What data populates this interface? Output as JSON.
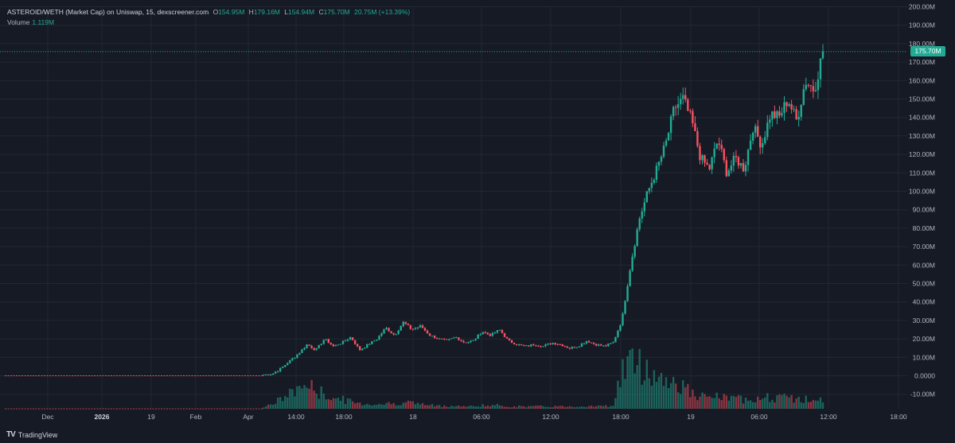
{
  "legend": {
    "symbol": "ASTEROID/WETH (Market Cap) on Uniswap, 15, dexscreener.com",
    "open_label": "O",
    "open": "154.95M",
    "high_label": "H",
    "high": "179.16M",
    "low_label": "L",
    "low": "154.94M",
    "close_label": "C",
    "close": "175.70M",
    "change": "20.75M (+13.39%)",
    "volume_label": "Volume",
    "volume": "1.119M"
  },
  "current_price_tag": "175.70M",
  "branding": {
    "name": "TradingView",
    "logo": "TV"
  },
  "colors": {
    "background": "#161a25",
    "up": "#22ab94",
    "down": "#f7525f",
    "grid": "#232733",
    "text": "#b2b5be"
  },
  "chart_data": {
    "type": "candlestick",
    "title": "ASTEROID/WETH (Market Cap) on Uniswap, 15, dexscreener.com",
    "y_unit": "market cap (USD)",
    "ylim": [
      -15,
      205
    ],
    "y_ticks": [
      "200.00M",
      "190.00M",
      "180.00M",
      "170.00M",
      "160.00M",
      "150.00M",
      "140.00M",
      "130.00M",
      "120.00M",
      "110.00M",
      "100.00M",
      "90.00M",
      "80.00M",
      "70.00M",
      "60.00M",
      "50.00M",
      "40.00M",
      "30.00M",
      "20.00M",
      "10.00M",
      "0.0000",
      "-10.00M"
    ],
    "x_ticks": [
      {
        "label": "Dec",
        "bold": false
      },
      {
        "label": "2026",
        "bold": true
      },
      {
        "label": "19",
        "bold": false
      },
      {
        "label": "Feb",
        "bold": false
      },
      {
        "label": "Apr",
        "bold": false
      },
      {
        "label": "14:00",
        "bold": false
      },
      {
        "label": "18:00",
        "bold": false
      },
      {
        "label": "18",
        "bold": false
      },
      {
        "label": "06:00",
        "bold": false
      },
      {
        "label": "12:00",
        "bold": false
      },
      {
        "label": "18:00",
        "bold": false
      },
      {
        "label": "19",
        "bold": false
      },
      {
        "label": "06:00",
        "bold": false
      },
      {
        "label": "12:00",
        "bold": false
      },
      {
        "label": "18:00",
        "bold": false
      }
    ],
    "last_price": 175.7,
    "pre_listing_value": 0,
    "segments": [
      {
        "value": 0.5,
        "vol": 0.08
      },
      {
        "value": 1,
        "vol": 0.2
      },
      {
        "value": 4,
        "vol": 0.4
      },
      {
        "value": 8,
        "vol": 0.6
      },
      {
        "value": 12,
        "vol": 0.9
      },
      {
        "value": 17,
        "vol": 1.0
      },
      {
        "value": 14,
        "vol": 0.75
      },
      {
        "value": 20,
        "vol": 0.6
      },
      {
        "value": 16,
        "vol": 0.45
      },
      {
        "value": 18,
        "vol": 0.4
      },
      {
        "value": 21,
        "vol": 0.3
      },
      {
        "value": 14,
        "vol": 0.22
      },
      {
        "value": 17,
        "vol": 0.2
      },
      {
        "value": 20,
        "vol": 0.2
      },
      {
        "value": 26,
        "vol": 0.22
      },
      {
        "value": 22,
        "vol": 0.2
      },
      {
        "value": 29,
        "vol": 0.3
      },
      {
        "value": 25,
        "vol": 0.25
      },
      {
        "value": 27,
        "vol": 0.2
      },
      {
        "value": 22,
        "vol": 0.15
      },
      {
        "value": 20,
        "vol": 0.12
      },
      {
        "value": 19,
        "vol": 0.12
      },
      {
        "value": 21,
        "vol": 0.12
      },
      {
        "value": 18,
        "vol": 0.1
      },
      {
        "value": 19,
        "vol": 0.1
      },
      {
        "value": 24,
        "vol": 0.15
      },
      {
        "value": 22,
        "vol": 0.12
      },
      {
        "value": 25,
        "vol": 0.15
      },
      {
        "value": 19,
        "vol": 0.1
      },
      {
        "value": 17,
        "vol": 0.1
      },
      {
        "value": 16,
        "vol": 0.1
      },
      {
        "value": 17,
        "vol": 0.1
      },
      {
        "value": 16,
        "vol": 0.1
      },
      {
        "value": 18,
        "vol": 0.1
      },
      {
        "value": 17,
        "vol": 0.1
      },
      {
        "value": 15,
        "vol": 0.1
      },
      {
        "value": 16,
        "vol": 0.1
      },
      {
        "value": 19,
        "vol": 0.12
      },
      {
        "value": 17,
        "vol": 0.12
      },
      {
        "value": 16,
        "vol": 0.1
      },
      {
        "value": 18,
        "vol": 0.15
      },
      {
        "value": 30,
        "vol": 1.6
      },
      {
        "value": 60,
        "vol": 2.0
      },
      {
        "value": 85,
        "vol": 1.8
      },
      {
        "value": 100,
        "vol": 1.6
      },
      {
        "value": 112,
        "vol": 1.4
      },
      {
        "value": 125,
        "vol": 1.2
      },
      {
        "value": 145,
        "vol": 1.1
      },
      {
        "value": 150,
        "vol": 1.0
      },
      {
        "value": 138,
        "vol": 0.6
      },
      {
        "value": 118,
        "vol": 0.5
      },
      {
        "value": 112,
        "vol": 0.45
      },
      {
        "value": 128,
        "vol": 0.5
      },
      {
        "value": 110,
        "vol": 0.45
      },
      {
        "value": 118,
        "vol": 0.4
      },
      {
        "value": 112,
        "vol": 0.4
      },
      {
        "value": 135,
        "vol": 0.5
      },
      {
        "value": 125,
        "vol": 0.4
      },
      {
        "value": 142,
        "vol": 0.5
      },
      {
        "value": 140,
        "vol": 0.45
      },
      {
        "value": 150,
        "vol": 0.45
      },
      {
        "value": 138,
        "vol": 0.4
      },
      {
        "value": 160,
        "vol": 0.4
      },
      {
        "value": 155,
        "vol": 0.35
      },
      {
        "value": 175.7,
        "vol": 0.35
      }
    ]
  }
}
